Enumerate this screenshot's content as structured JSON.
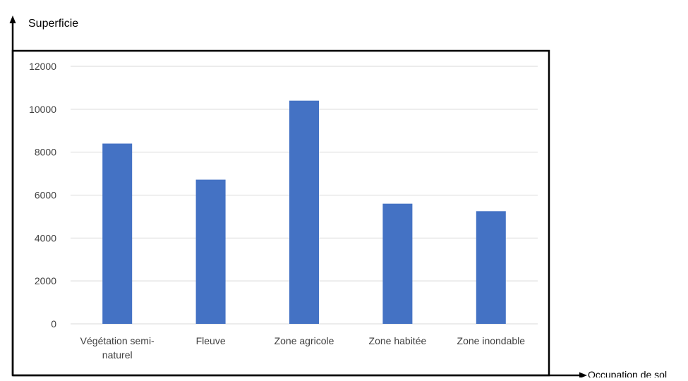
{
  "chart_data": {
    "type": "bar",
    "categories": [
      [
        "Végétation semi-",
        "naturel"
      ],
      [
        "Fleuve"
      ],
      [
        "Zone agricole"
      ],
      [
        "Zone habitée"
      ],
      [
        "Zone inondable"
      ]
    ],
    "values": [
      8400,
      6720,
      10400,
      5600,
      5250
    ],
    "ylabel": "Superficie",
    "xlabel": "Occupation de sol",
    "ylim": [
      0,
      12000
    ],
    "yticks": [
      "0",
      "2000",
      "4000",
      "6000",
      "8000",
      "10000",
      "12000"
    ],
    "grid": true,
    "legend": "none",
    "bar_color": "#4472C4",
    "grid_color": "#d9d9d9",
    "axis_color": "#000000",
    "text_color": "#404040"
  }
}
